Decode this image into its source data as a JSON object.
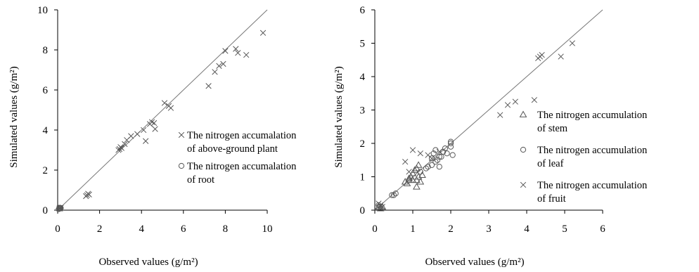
{
  "chart_data": [
    {
      "type": "scatter",
      "xlabel": "Observed values (g/m²)",
      "ylabel": "Simulated values (g/m²)",
      "xlim": [
        0,
        10
      ],
      "ylim": [
        0,
        10
      ],
      "xticks": [
        "0",
        "2",
        "4",
        "6",
        "8",
        "10"
      ],
      "yticks": [
        "0",
        "2",
        "4",
        "6",
        "8",
        "10"
      ],
      "reference_line": "1:1",
      "legend_position": "right",
      "series": [
        {
          "name": "The nitrogen accumalation of above-ground plant",
          "legend_lines": [
            "The nitrogen accumalation",
            "of above-ground plant"
          ],
          "marker": "x",
          "points": [
            [
              0.08,
              0.08
            ],
            [
              0.1,
              0.1
            ],
            [
              0.12,
              0.08
            ],
            [
              0.15,
              0.12
            ],
            [
              1.35,
              0.7
            ],
            [
              1.4,
              0.75
            ],
            [
              1.45,
              0.82
            ],
            [
              1.5,
              0.78
            ],
            [
              2.9,
              3.0
            ],
            [
              2.95,
              3.05
            ],
            [
              3.0,
              3.15
            ],
            [
              3.05,
              3.1
            ],
            [
              3.2,
              3.3
            ],
            [
              3.3,
              3.5
            ],
            [
              3.5,
              3.7
            ],
            [
              3.8,
              3.8
            ],
            [
              4.1,
              4.0
            ],
            [
              4.2,
              3.45
            ],
            [
              4.4,
              4.3
            ],
            [
              4.5,
              4.4
            ],
            [
              4.6,
              4.35
            ],
            [
              4.65,
              4.05
            ],
            [
              5.1,
              5.35
            ],
            [
              5.3,
              5.2
            ],
            [
              5.4,
              5.1
            ],
            [
              7.2,
              6.2
            ],
            [
              7.5,
              6.9
            ],
            [
              7.7,
              7.2
            ],
            [
              7.9,
              7.3
            ],
            [
              8.0,
              7.95
            ],
            [
              8.5,
              8.05
            ],
            [
              8.6,
              7.85
            ],
            [
              9.0,
              7.75
            ],
            [
              9.8,
              8.85
            ]
          ]
        },
        {
          "name": "The nitrogen accumalation of root",
          "legend_lines": [
            "The nitrogen accumalation",
            "of root"
          ],
          "marker": "circle",
          "points": [
            [
              0.05,
              0.05
            ],
            [
              0.08,
              0.1
            ],
            [
              0.1,
              0.08
            ],
            [
              0.12,
              0.12
            ],
            [
              0.15,
              0.1
            ],
            [
              0.1,
              0.12
            ]
          ]
        }
      ]
    },
    {
      "type": "scatter",
      "xlabel": "Observed values (g/m²)",
      "ylabel": "Simulated values (g/m²)",
      "xlim": [
        0,
        6
      ],
      "ylim": [
        0,
        6
      ],
      "xticks": [
        "0",
        "1",
        "2",
        "3",
        "4",
        "5",
        "6"
      ],
      "yticks": [
        "0",
        "1",
        "2",
        "3",
        "4",
        "5",
        "6"
      ],
      "reference_line": "1:1",
      "legend_position": "right",
      "series": [
        {
          "name": "The nitrogen accumulation of stem",
          "legend_lines": [
            "The nitrogen accumulation",
            "of stem"
          ],
          "marker": "triangle",
          "points": [
            [
              0.1,
              0.1
            ],
            [
              0.15,
              0.05
            ],
            [
              0.2,
              0.1
            ],
            [
              0.8,
              0.85
            ],
            [
              0.85,
              0.8
            ],
            [
              0.9,
              0.9
            ],
            [
              0.95,
              1.0
            ],
            [
              1.0,
              1.1
            ],
            [
              1.05,
              1.2
            ],
            [
              1.1,
              1.25
            ],
            [
              1.15,
              1.35
            ],
            [
              1.1,
              0.9
            ],
            [
              1.15,
              1.0
            ],
            [
              1.2,
              0.85
            ],
            [
              1.1,
              0.7
            ],
            [
              1.25,
              1.05
            ],
            [
              0.9,
              0.95
            ],
            [
              1.0,
              0.9
            ]
          ]
        },
        {
          "name": "The nitrogen accumulation of leaf",
          "legend_lines": [
            "The nitrogen accumulation",
            "of leaf"
          ],
          "marker": "circle",
          "points": [
            [
              0.1,
              0.15
            ],
            [
              0.15,
              0.1
            ],
            [
              0.45,
              0.45
            ],
            [
              0.5,
              0.45
            ],
            [
              0.55,
              0.5
            ],
            [
              1.2,
              1.15
            ],
            [
              1.4,
              1.3
            ],
            [
              1.5,
              1.55
            ],
            [
              1.55,
              1.7
            ],
            [
              1.6,
              1.8
            ],
            [
              1.65,
              1.5
            ],
            [
              1.7,
              1.3
            ],
            [
              1.75,
              1.6
            ],
            [
              1.8,
              1.75
            ],
            [
              1.85,
              1.85
            ],
            [
              1.9,
              1.7
            ],
            [
              2.0,
              1.9
            ],
            [
              2.0,
              2.0
            ],
            [
              2.05,
              1.65
            ],
            [
              1.6,
              1.45
            ],
            [
              1.7,
              1.6
            ],
            [
              1.5,
              1.35
            ],
            [
              1.35,
              1.25
            ],
            [
              2.0,
              2.05
            ]
          ]
        },
        {
          "name": "The nitrogen accumulation of fruit",
          "legend_lines": [
            "The nitrogen accumulation",
            "of fruit"
          ],
          "marker": "x",
          "points": [
            [
              0.1,
              0.2
            ],
            [
              0.15,
              0.15
            ],
            [
              0.2,
              0.1
            ],
            [
              0.8,
              1.45
            ],
            [
              0.9,
              1.15
            ],
            [
              1.0,
              1.8
            ],
            [
              1.2,
              1.7
            ],
            [
              1.4,
              1.65
            ],
            [
              1.5,
              1.55
            ],
            [
              1.7,
              1.75
            ],
            [
              3.3,
              2.85
            ],
            [
              3.5,
              3.15
            ],
            [
              3.7,
              3.25
            ],
            [
              4.2,
              3.3
            ],
            [
              4.3,
              4.55
            ],
            [
              4.35,
              4.6
            ],
            [
              4.4,
              4.65
            ],
            [
              4.9,
              4.6
            ],
            [
              5.2,
              5.0
            ]
          ]
        }
      ]
    }
  ]
}
